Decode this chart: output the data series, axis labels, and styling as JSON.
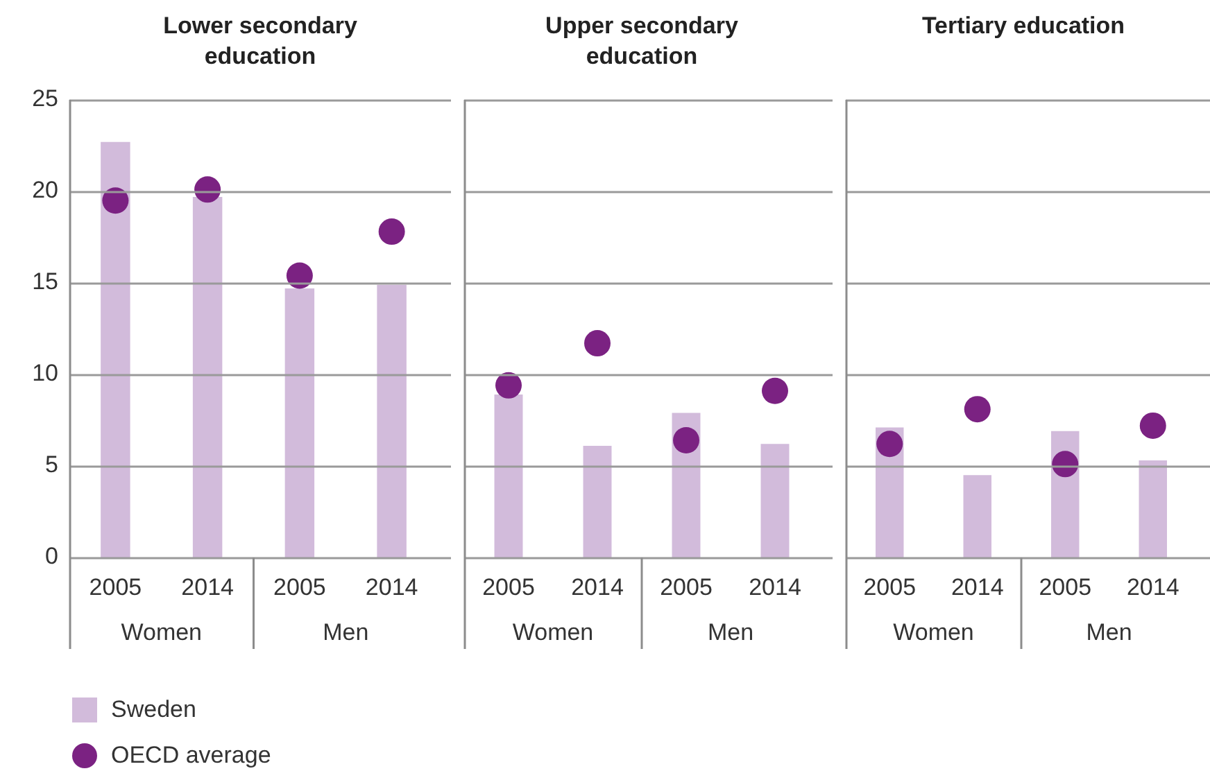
{
  "chart_data": [
    {
      "type": "bar",
      "title": "Lower secondary education",
      "categories": [
        "2005",
        "2014",
        "2005",
        "2014"
      ],
      "annotations": [
        "Women",
        "Men"
      ],
      "series": [
        {
          "name": "Sweden",
          "color": "#d2bbdb",
          "values": [
            22.7,
            19.7,
            14.7,
            14.9
          ]
        },
        {
          "name": "OECD average",
          "type": "scatter",
          "color": "#7b2282",
          "values": [
            19.5,
            20.1,
            15.4,
            17.8
          ]
        }
      ],
      "ylim": [
        0,
        25
      ],
      "yticks": [
        0,
        5,
        10,
        15,
        20,
        25
      ],
      "grid": "y",
      "legend": "bottom",
      "marker": "circle"
    },
    {
      "type": "bar",
      "title": "Upper secondary education",
      "categories": [
        "2005",
        "2014",
        "2005",
        "2014"
      ],
      "annotations": [
        "Women",
        "Men"
      ],
      "series": [
        {
          "color": "#d2bbdb",
          "values": [
            8.9,
            6.1,
            7.9,
            6.2
          ]
        },
        {
          "type": "scatter",
          "color": "#7b2282",
          "values": [
            9.4,
            11.7,
            6.4,
            9.1
          ]
        }
      ],
      "ylim": [
        0,
        25
      ],
      "yticks": [
        0,
        5,
        10,
        15,
        20,
        25
      ],
      "grid": "y",
      "tick_labels": "x",
      "marker": "circle"
    },
    {
      "type": "bar",
      "title": "Tertiary education",
      "categories": [
        "2005",
        "2014",
        "2005",
        "2014"
      ],
      "annotations": [
        "Women",
        "Men"
      ],
      "series": [
        {
          "color": "#d2bbdb",
          "values": [
            7.1,
            4.5,
            6.9,
            5.3
          ]
        },
        {
          "type": "scatter",
          "color": "#7b2282",
          "values": [
            6.2,
            8.1,
            5.1,
            7.2
          ]
        }
      ],
      "ylim": [
        0,
        25
      ],
      "yticks": [
        0,
        5,
        10,
        15,
        20,
        25
      ],
      "grid": "y",
      "tick_labels": "x",
      "marker": "circle"
    }
  ]
}
